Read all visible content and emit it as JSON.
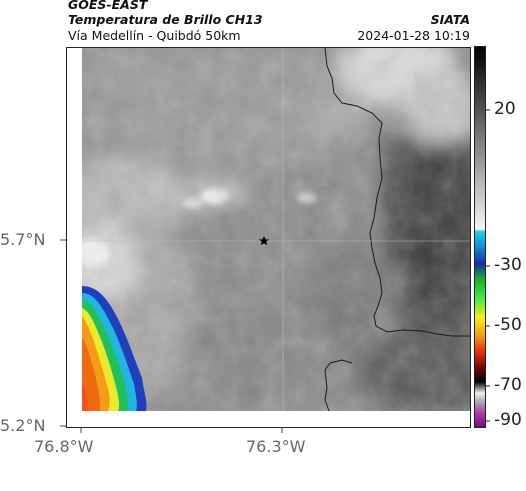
{
  "header": {
    "satellite": "GOES-EAST",
    "product": "Temperatura de Brillo CH13",
    "region": "Vía Medellín - Quibdó 50km",
    "agency": "SIATA",
    "datetime": "2024-01-28 10:19"
  },
  "axes": {
    "lat_ticks": [
      "5.7°N",
      "5.2°N"
    ],
    "lon_ticks": [
      "76.8°W",
      "76.3°W"
    ]
  },
  "colorbar": {
    "tick_labels": [
      "20",
      "-30",
      "-50",
      "-70",
      "-90"
    ]
  },
  "marker": {
    "icon": "star-icon"
  }
}
